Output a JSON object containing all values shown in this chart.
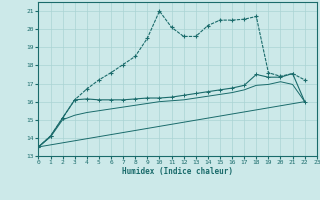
{
  "xlabel": "Humidex (Indice chaleur)",
  "bg_color": "#cce9e9",
  "grid_color": "#aad4d4",
  "line_color": "#1a6b6b",
  "xlim": [
    0,
    23
  ],
  "ylim": [
    13,
    21.5
  ],
  "yticks": [
    13,
    14,
    15,
    16,
    17,
    18,
    19,
    20,
    21
  ],
  "xticks": [
    0,
    1,
    2,
    3,
    4,
    5,
    6,
    7,
    8,
    9,
    10,
    11,
    12,
    13,
    14,
    15,
    16,
    17,
    18,
    19,
    20,
    21,
    22,
    23
  ],
  "line1_x": [
    0,
    1,
    2,
    3,
    4,
    5,
    6,
    7,
    8,
    9,
    10,
    11,
    12,
    13,
    14,
    15,
    16,
    17,
    18,
    19,
    20,
    21,
    22
  ],
  "line1_y": [
    13.5,
    14.1,
    15.1,
    16.1,
    16.7,
    17.2,
    17.6,
    18.05,
    18.5,
    19.5,
    21.0,
    20.1,
    19.6,
    19.6,
    20.2,
    20.5,
    20.5,
    20.55,
    20.7,
    17.6,
    17.4,
    17.55,
    17.2
  ],
  "line2_x": [
    0,
    1,
    2,
    3,
    4,
    5,
    6,
    7,
    8,
    9,
    10,
    11,
    12,
    13,
    14,
    15,
    16,
    17,
    18,
    19,
    20,
    21,
    22
  ],
  "line2_y": [
    13.5,
    14.1,
    15.1,
    16.1,
    16.15,
    16.1,
    16.1,
    16.1,
    16.15,
    16.2,
    16.2,
    16.25,
    16.35,
    16.45,
    16.55,
    16.65,
    16.75,
    16.9,
    17.5,
    17.35,
    17.35,
    17.55,
    16.0
  ],
  "line3_x": [
    0,
    1,
    2,
    3,
    4,
    5,
    6,
    7,
    8,
    9,
    10,
    11,
    12,
    13,
    14,
    15,
    16,
    17,
    18,
    19,
    20,
    21,
    22
  ],
  "line3_y": [
    13.5,
    14.05,
    15.0,
    15.25,
    15.4,
    15.5,
    15.6,
    15.7,
    15.8,
    15.9,
    16.0,
    16.05,
    16.1,
    16.2,
    16.3,
    16.4,
    16.5,
    16.65,
    16.9,
    16.95,
    17.1,
    16.95,
    16.0
  ],
  "line4_x": [
    0,
    22
  ],
  "line4_y": [
    13.5,
    16.0
  ]
}
